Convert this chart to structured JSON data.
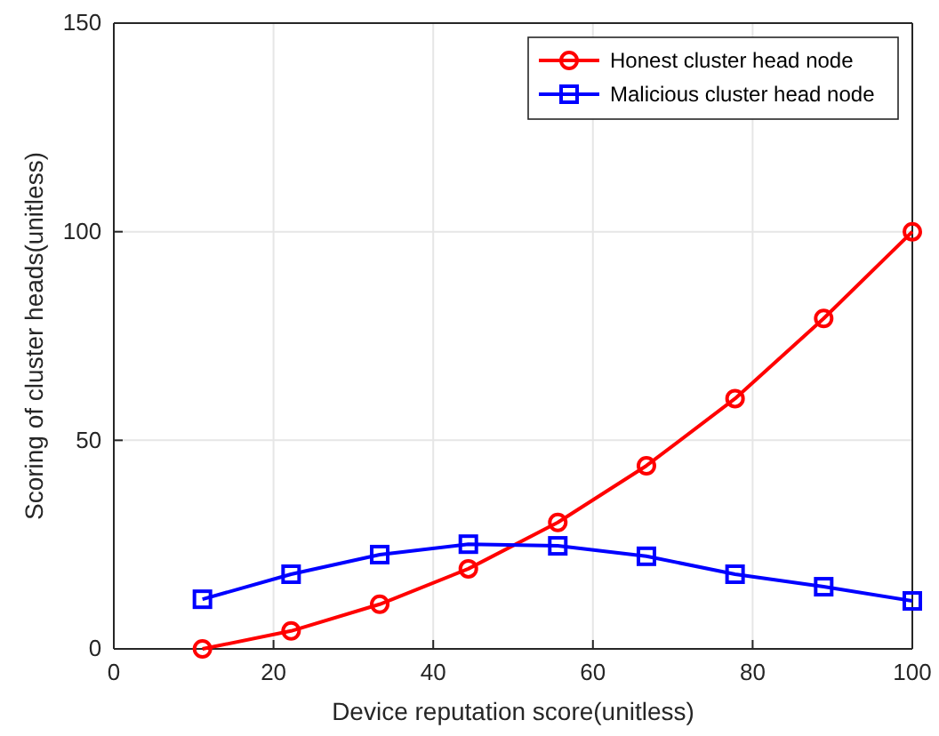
{
  "chart_data": {
    "type": "line",
    "xlabel": "Device reputation score(unitless)",
    "ylabel": "Scoring of cluster heads(unitless)",
    "x": [
      11.1,
      22.2,
      33.3,
      44.4,
      55.6,
      66.7,
      77.8,
      88.9,
      100
    ],
    "series": [
      {
        "name": "Honest cluster head node",
        "color": "#ff0000",
        "marker": "circle",
        "values": [
          0,
          4.3,
          10.7,
          19.2,
          30.3,
          43.9,
          60,
          79.2,
          100
        ]
      },
      {
        "name": "Malicious cluster head node",
        "color": "#0000ff",
        "marker": "square",
        "values": [
          11.9,
          17.9,
          22.6,
          25.1,
          24.7,
          22.2,
          17.9,
          14.9,
          11.5
        ]
      }
    ],
    "xlim": [
      0,
      100
    ],
    "xticks": [
      0,
      20,
      40,
      60,
      80,
      100
    ],
    "ylim": [
      0,
      150
    ],
    "yticks": [
      0,
      50,
      100,
      150
    ],
    "grid": true,
    "legend": "top right",
    "line_style": "solid"
  }
}
